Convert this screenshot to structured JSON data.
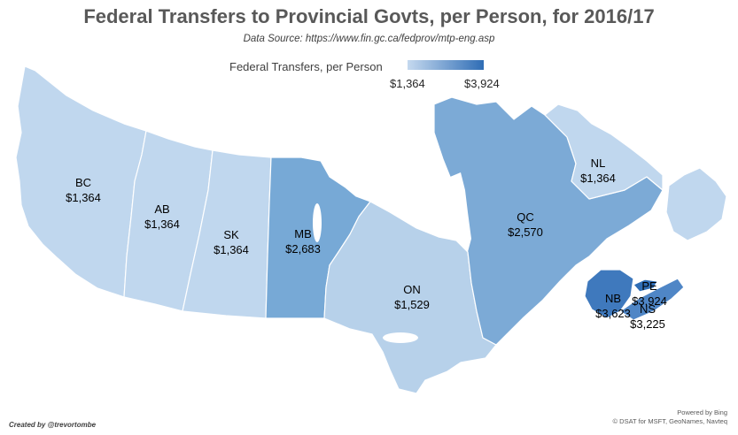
{
  "title": "Federal Transfers to Provincial Govts, per Person, for 2016/17",
  "subtitle": "Data Source:  https://www.fin.gc.ca/fedprov/mtp-eng.asp",
  "legend": {
    "title": "Federal Transfers, per Person",
    "min_label": "$1,364",
    "max_label": "$3,924",
    "min_color": "#c5d9ef",
    "max_color": "#2f6db5"
  },
  "provinces": {
    "bc": {
      "abbr": "BC",
      "value": "$1,364",
      "color": "#c0d7ee"
    },
    "ab": {
      "abbr": "AB",
      "value": "$1,364",
      "color": "#c0d7ee"
    },
    "sk": {
      "abbr": "SK",
      "value": "$1,364",
      "color": "#c0d7ee"
    },
    "mb": {
      "abbr": "MB",
      "value": "$2,683",
      "color": "#77a9d6"
    },
    "on": {
      "abbr": "ON",
      "value": "$1,529",
      "color": "#b7d1ea"
    },
    "qc": {
      "abbr": "QC",
      "value": "$2,570",
      "color": "#7caad6"
    },
    "nl": {
      "abbr": "NL",
      "value": "$1,364",
      "color": "#c0d7ee"
    },
    "nb": {
      "abbr": "NB",
      "value": "$3,623",
      "color": "#3f79bd"
    },
    "pe": {
      "abbr": "PE",
      "value": "$3,924",
      "color": "#2f6db5"
    },
    "ns": {
      "abbr": "NS",
      "value": "$3,225",
      "color": "#4f86c6"
    }
  },
  "footer": {
    "credit": "Created by @trevortombe",
    "powered_line1": "Powered by Bing",
    "powered_line2": "© DSAT for MSFT, GeoNames, Navteq"
  }
}
